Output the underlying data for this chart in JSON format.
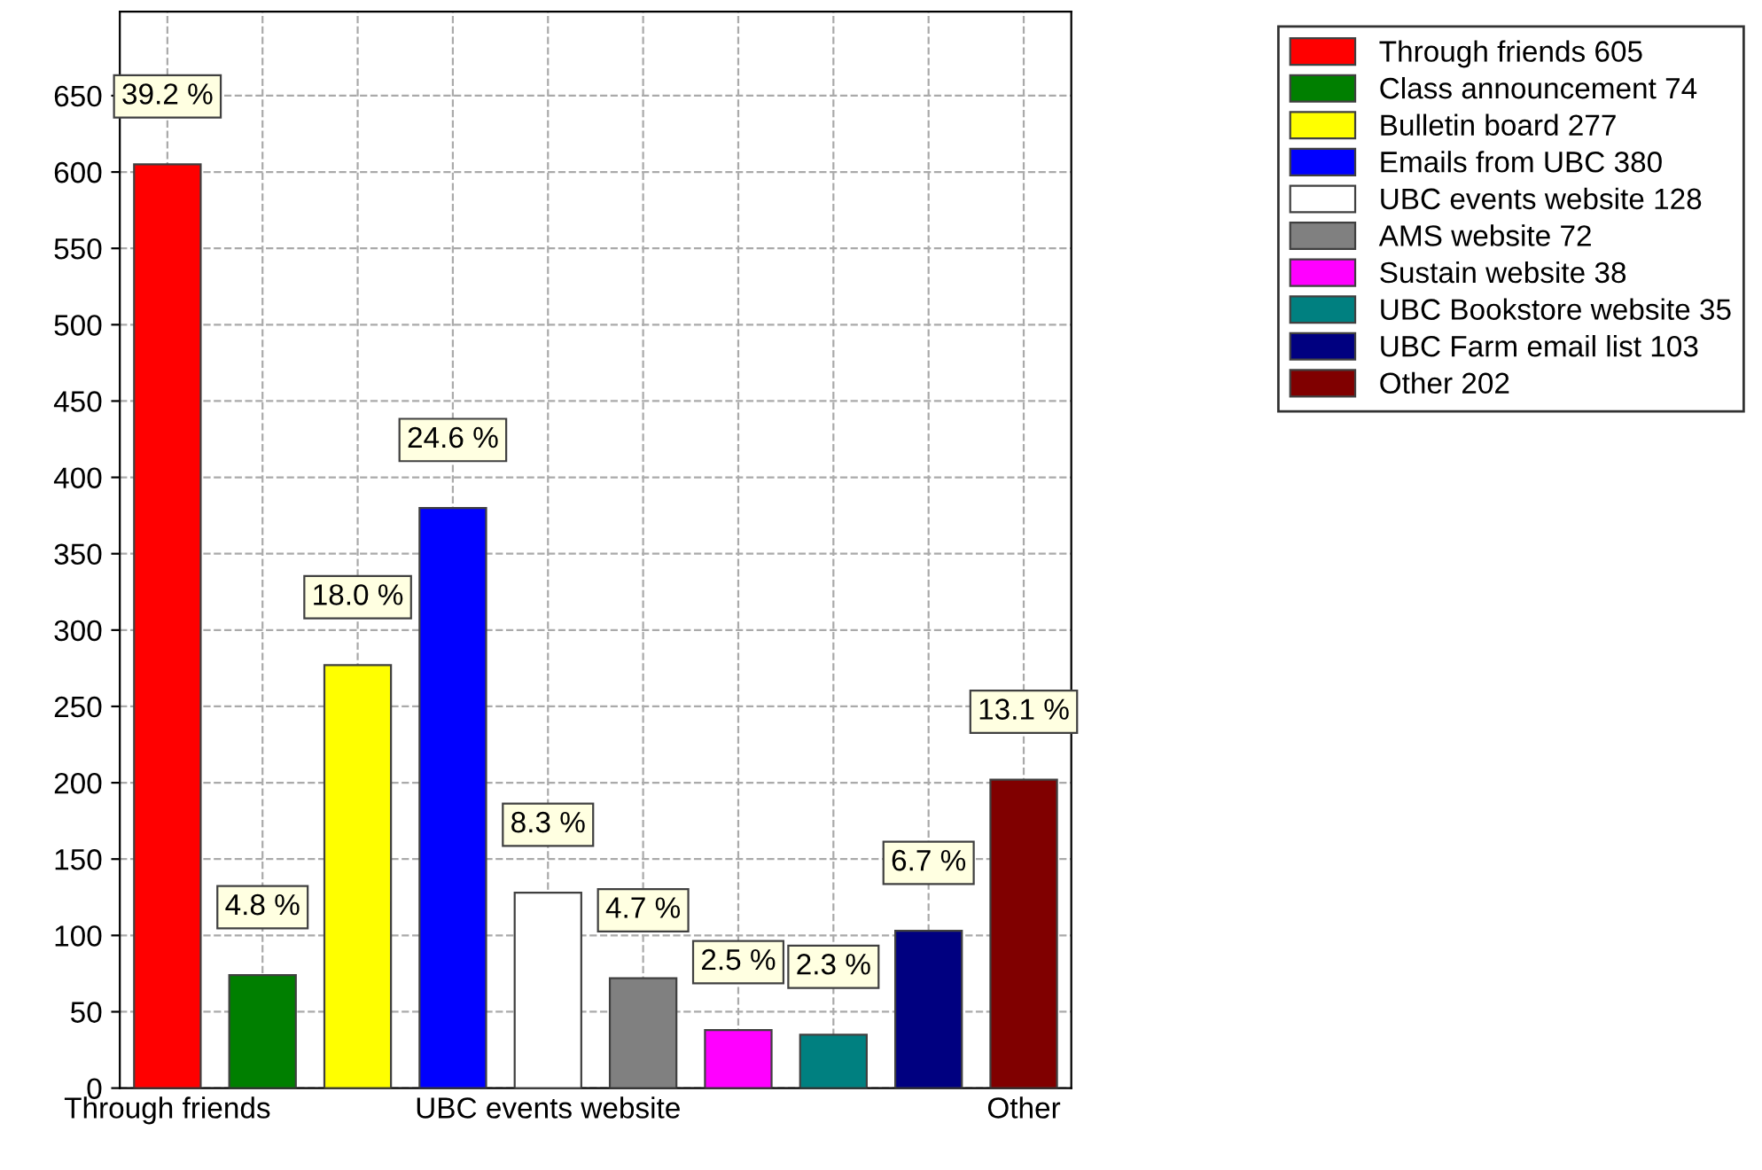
{
  "chart_data": {
    "type": "bar",
    "categories": [
      "Through friends",
      null,
      null,
      null,
      "UBC events website",
      null,
      null,
      null,
      null,
      "Other"
    ],
    "series": [
      {
        "name": "Through friends 605",
        "color": "#ff0000",
        "values": [
          605,
          null,
          null,
          null,
          null,
          null,
          null,
          null,
          null,
          null
        ]
      },
      {
        "name": "Class announcement 74",
        "color": "#007f00",
        "values": [
          null,
          74,
          null,
          null,
          null,
          null,
          null,
          null,
          null,
          null
        ]
      },
      {
        "name": "Bulletin board 277",
        "color": "#ffff00",
        "values": [
          null,
          null,
          277,
          null,
          null,
          null,
          null,
          null,
          null,
          null
        ]
      },
      {
        "name": "Emails from UBC 380",
        "color": "#0000ff",
        "values": [
          null,
          null,
          null,
          380,
          null,
          null,
          null,
          null,
          null,
          null
        ]
      },
      {
        "name": "UBC events website 128",
        "color": "#ffffff",
        "values": [
          null,
          null,
          null,
          null,
          128,
          null,
          null,
          null,
          null,
          null
        ]
      },
      {
        "name": "AMS website 72",
        "color": "#808080",
        "values": [
          null,
          null,
          null,
          null,
          null,
          72,
          null,
          null,
          null,
          null
        ]
      },
      {
        "name": "Sustain website 38",
        "color": "#ff00ff",
        "values": [
          null,
          null,
          null,
          null,
          null,
          null,
          38,
          null,
          null,
          null
        ]
      },
      {
        "name": "UBC Bookstore website 35",
        "color": "#008080",
        "values": [
          null,
          null,
          null,
          null,
          null,
          null,
          null,
          35,
          null,
          null
        ]
      },
      {
        "name": "UBC Farm email list 103",
        "color": "#000080",
        "values": [
          null,
          null,
          null,
          null,
          null,
          null,
          null,
          null,
          103,
          null
        ]
      },
      {
        "name": "Other 202",
        "color": "#800000",
        "values": [
          null,
          null,
          null,
          null,
          null,
          null,
          null,
          null,
          null,
          202
        ]
      }
    ],
    "annotations": [
      {
        "text": "39.2 %",
        "y": 605
      },
      {
        "text": "4.8 %",
        "y": 74
      },
      {
        "text": "18.0 %",
        "y": 277
      },
      {
        "text": "24.6 %",
        "y": 380
      },
      {
        "text": "8.3 %",
        "y": 128
      },
      {
        "text": "4.7 %",
        "y": 72
      },
      {
        "text": "2.5 %",
        "y": 38
      },
      {
        "text": "2.3 %",
        "y": 35
      },
      {
        "text": "6.7 %",
        "y": 103
      },
      {
        "text": "13.1 %",
        "y": 202
      }
    ],
    "ylim": [
      0,
      705
    ],
    "yticks": [
      0,
      50,
      100,
      150,
      200,
      250,
      300,
      350,
      400,
      450,
      500,
      550,
      600,
      650
    ],
    "grid": true,
    "legend": "top right"
  }
}
